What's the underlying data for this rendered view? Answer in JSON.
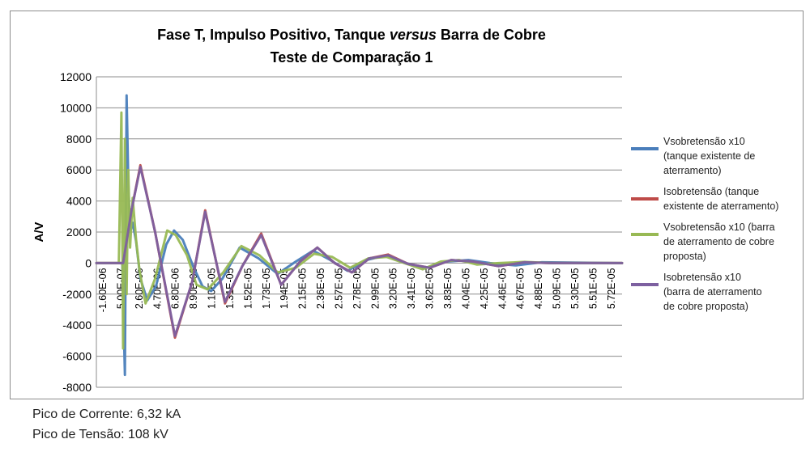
{
  "chart_data": {
    "type": "line",
    "title_parts": [
      {
        "text": "Fase T, Impulso Positivo, Tanque ",
        "italic": false
      },
      {
        "text": "versus",
        "italic": true
      },
      {
        "text": " Barra de Cobre",
        "italic": false
      }
    ],
    "subtitle": "Teste de Comparação 1",
    "ylabel": "A/V",
    "xlabel": "",
    "ylim": [
      -8000,
      12000
    ],
    "yticks": [
      "12000",
      "10000",
      "8000",
      "6000",
      "4000",
      "2000",
      "0",
      "-2000",
      "-4000",
      "-6000",
      "-8000"
    ],
    "xlim": [
      -1.6e-06,
      5.93e-05
    ],
    "xticks": [
      "-1.60E-06",
      "5.00E-07",
      "2.60E-06",
      "4.70E-06",
      "6.80E-06",
      "8.90E-06",
      "1.10E-05",
      "1.31E-05",
      "1.52E-05",
      "1.73E-05",
      "1.94E-05",
      "2.15E-05",
      "2.36E-05",
      "2.57E-05",
      "2.78E-05",
      "2.99E-05",
      "3.20E-05",
      "3.41E-05",
      "3.62E-05",
      "3.83E-05",
      "4.04E-05",
      "4.25E-05",
      "4.46E-05",
      "4.67E-05",
      "4.88E-05",
      "5.09E-05",
      "5.30E-05",
      "5.51E-05",
      "5.72E-05"
    ],
    "grid": {
      "horizontal": true,
      "vertical": false
    },
    "legend_position": "right",
    "series": [
      {
        "name": "Vsobretensão x10\n(tanque existente de\naterramento)",
        "color": "#4a7ebb",
        "x": [
          -1.6e-06,
          1.4e-06,
          1.7e-06,
          1.9e-06,
          2.1e-06,
          2.3e-06,
          2.6e-06,
          3e-06,
          3.5e-06,
          4.3e-06,
          5.3e-06,
          6.5e-06,
          7.4e-06,
          8.4e-06,
          9.6e-06,
          1.07e-05,
          1.17e-05,
          1.3e-05,
          1.5e-05,
          1.72e-05,
          1.94e-05,
          2.15e-05,
          2.35e-05,
          2.55e-05,
          2.75e-05,
          2.97e-05,
          3.2e-05,
          3.42e-05,
          3.66e-05,
          3.9e-05,
          4.15e-05,
          4.4e-05,
          4.7e-05,
          5e-05,
          5.93e-05
        ],
        "y": [
          0,
          0,
          -7200,
          10800,
          5200,
          2000,
          2600,
          1400,
          -1000,
          -2400,
          -1500,
          1200,
          2100,
          1500,
          -200,
          -1500,
          -1800,
          -1000,
          1000,
          300,
          -700,
          100,
          800,
          200,
          -500,
          200,
          500,
          0,
          -300,
          100,
          200,
          0,
          -150,
          50,
          0
        ]
      },
      {
        "name": "Isobretensão (tanque\nexistente de aterramento)",
        "color": "#be4b48",
        "x": [
          -1.6e-06,
          1.5e-06,
          2.5e-06,
          3.5e-06,
          5.2e-06,
          7.5e-06,
          9.5e-06,
          1.1e-05,
          1.33e-05,
          1.53e-05,
          1.75e-05,
          1.98e-05,
          2.2e-05,
          2.4e-05,
          2.6e-05,
          2.8e-05,
          3e-05,
          3.22e-05,
          3.45e-05,
          3.7e-05,
          3.95e-05,
          4.2e-05,
          4.5e-05,
          4.8e-05,
          5.1e-05,
          5.4e-05,
          5.93e-05
        ],
        "y": [
          0,
          0,
          3500,
          6300,
          2000,
          -4800,
          -1200,
          3400,
          -2600,
          -200,
          1900,
          -1400,
          100,
          1000,
          0,
          -600,
          300,
          550,
          -50,
          -300,
          200,
          100,
          -200,
          50,
          0,
          0,
          0
        ]
      },
      {
        "name": "Vsobretensão x10 (barra\nde aterramento de cobre\nproposta)",
        "color": "#98b954",
        "x": [
          -1.6e-06,
          1e-06,
          1.3e-06,
          1.5e-06,
          1.7e-06,
          1.9e-06,
          2.1e-06,
          2.3e-06,
          2.6e-06,
          3e-06,
          3.4e-06,
          4.1e-06,
          5.2e-06,
          6.6e-06,
          7.6e-06,
          8.9e-06,
          1e-05,
          1.13e-05,
          1.31e-05,
          1.52e-05,
          1.73e-05,
          1.94e-05,
          2.15e-05,
          2.36e-05,
          2.57e-05,
          2.78e-05,
          2.99e-05,
          3.2e-05,
          3.41e-05,
          3.62e-05,
          3.83e-05,
          4.04e-05,
          4.25e-05,
          4.5e-05,
          4.8e-05,
          5.1e-05,
          5.93e-05
        ],
        "y": [
          0,
          0,
          9700,
          -5500,
          8000,
          -2000,
          6000,
          1000,
          4200,
          1500,
          -500,
          -2600,
          -1000,
          2100,
          1800,
          500,
          -1400,
          -1700,
          -600,
          1100,
          500,
          -600,
          -300,
          600,
          400,
          -300,
          300,
          400,
          0,
          -400,
          100,
          200,
          -100,
          0,
          80,
          0,
          0
        ]
      },
      {
        "name": "Isobretensão x10\n(barra de aterramento\nde cobre proposta)",
        "color": "#7d60a0",
        "x": [
          -1.6e-06,
          1.5e-06,
          2.5e-06,
          3.5e-06,
          5.2e-06,
          7.5e-06,
          9.5e-06,
          1.1e-05,
          1.33e-05,
          1.53e-05,
          1.75e-05,
          1.98e-05,
          2.2e-05,
          2.4e-05,
          2.6e-05,
          2.8e-05,
          3e-05,
          3.22e-05,
          3.45e-05,
          3.7e-05,
          3.95e-05,
          4.2e-05,
          4.5e-05,
          4.8e-05,
          5.1e-05,
          5.4e-05,
          5.93e-05
        ],
        "y": [
          0,
          0,
          3500,
          6200,
          2000,
          -4700,
          -1200,
          3300,
          -2500,
          -200,
          1800,
          -1400,
          100,
          1000,
          0,
          -600,
          300,
          500,
          -50,
          -300,
          200,
          100,
          -200,
          50,
          0,
          0,
          0
        ]
      }
    ]
  },
  "footer": {
    "line1": "Pico de Corrente: 6,32 kA",
    "line2": "Pico de Tensão: 108 kV"
  }
}
